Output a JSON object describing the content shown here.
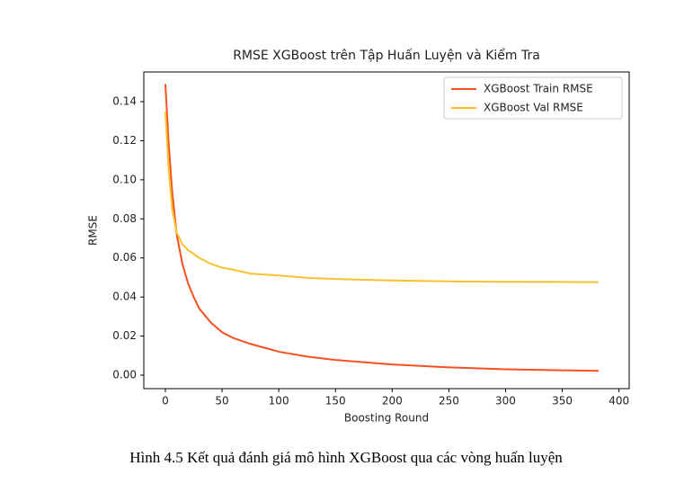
{
  "chart_data": {
    "type": "line",
    "title": "RMSE XGBoost trên Tập Huấn Luyện và Kiểm Tra",
    "xlabel": "Boosting Round",
    "ylabel": "RMSE",
    "x": [
      0,
      3,
      6,
      10,
      15,
      20,
      25,
      30,
      40,
      50,
      60,
      75,
      100,
      125,
      150,
      200,
      250,
      300,
      350,
      382
    ],
    "series": [
      {
        "name": "XGBoost Train RMSE",
        "color": "#f4511e",
        "values": [
          0.149,
          0.118,
          0.094,
          0.072,
          0.057,
          0.047,
          0.04,
          0.034,
          0.027,
          0.022,
          0.019,
          0.016,
          0.012,
          0.0095,
          0.0078,
          0.0055,
          0.004,
          0.003,
          0.0025,
          0.0022
        ]
      },
      {
        "name": "XGBoost Val RMSE",
        "color": "#fbc02d",
        "values": [
          0.135,
          0.105,
          0.085,
          0.073,
          0.067,
          0.064,
          0.062,
          0.06,
          0.057,
          0.055,
          0.054,
          0.052,
          0.051,
          0.0498,
          0.0492,
          0.0485,
          0.048,
          0.0478,
          0.0477,
          0.0476
        ]
      }
    ],
    "xlim": [
      -19,
      409
    ],
    "ylim": [
      -0.0069,
      0.1552
    ],
    "xticks": [
      0,
      50,
      100,
      150,
      200,
      250,
      300,
      350,
      400
    ],
    "yticks": [
      {
        "value": 0,
        "label": "0.00"
      },
      {
        "value": 0.02,
        "label": "0.02"
      },
      {
        "value": 0.04,
        "label": "0.04"
      },
      {
        "value": 0.06,
        "label": "0.06"
      },
      {
        "value": 0.08,
        "label": "0.08"
      },
      {
        "value": 0.1,
        "label": "0.10"
      },
      {
        "value": 0.12,
        "label": "0.12"
      },
      {
        "value": 0.14,
        "label": "0.14"
      }
    ],
    "legend": "upper right"
  },
  "caption": "Hình 4.5 Kết quả đánh giá mô hình XGBoost qua các vòng huấn luyện"
}
